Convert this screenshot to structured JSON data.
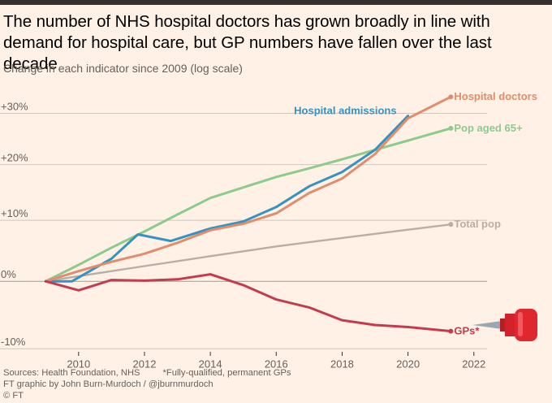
{
  "header": {
    "title": "The number of NHS hospital doctors has grown broadly in line with demand for hospital care, but GP numbers have fallen over the last decade",
    "subtitle": "Change in each indicator since 2009 (log scale)"
  },
  "footer": {
    "sources": "Sources: Health Foundation, NHS",
    "note": "*Fully-qualified, permanent GPs",
    "credit": "FT graphic by John Burn-Murdoch / @jburnmurdoch",
    "copyright": "© FT"
  },
  "colors": {
    "background": "#fff1e5",
    "grid": "#cec6bd",
    "text": "#33302e",
    "muted": "#66605c",
    "pin": "#d2232a"
  },
  "icon": "push-pin-icon",
  "chart_data": {
    "type": "line",
    "title": "The number of NHS hospital doctors has grown broadly in line with demand for hospital care, but GP numbers have fallen over the last decade",
    "xlabel": "",
    "ylabel": "Change in each indicator since 2009 (log scale)",
    "x_ticks": [
      2010,
      2012,
      2014,
      2016,
      2018,
      2020,
      2022
    ],
    "xlim": [
      2008.6,
      2022.4
    ],
    "y_ticks": [
      {
        "value": -10,
        "label": "-10%"
      },
      {
        "value": 0,
        "label": "0%"
      },
      {
        "value": 10,
        "label": "+10%"
      },
      {
        "value": 20,
        "label": "+20%"
      },
      {
        "value": 30,
        "label": "+30%"
      }
    ],
    "ylim": [
      -11,
      36
    ],
    "y_scale": "log",
    "grid": true,
    "series": [
      {
        "name": "Total pop",
        "label": "Total pop",
        "color": "#b9aea6",
        "x": [
          2009,
          2010,
          2011,
          2012,
          2013,
          2014,
          2015,
          2016,
          2017,
          2018,
          2019,
          2020,
          2021.3
        ],
        "values": [
          0,
          0.8,
          1.6,
          2.4,
          3.2,
          4.0,
          4.8,
          5.6,
          6.3,
          7.0,
          7.7,
          8.4,
          9.3
        ]
      },
      {
        "name": "Pop aged 65+",
        "label": "Pop aged 65+",
        "color": "#8ccb8b",
        "x": [
          2009,
          2010,
          2011,
          2012,
          2013,
          2014,
          2015,
          2016,
          2017,
          2018,
          2019,
          2020,
          2021.3
        ],
        "values": [
          0,
          2.6,
          5.4,
          8.1,
          11.0,
          13.9,
          15.8,
          17.7,
          19.3,
          21.0,
          22.8,
          24.6,
          27.0
        ]
      },
      {
        "name": "Hospital admissions",
        "label": "Hospital admissions",
        "color": "#3593c3",
        "x": [
          2009,
          2009.8,
          2011,
          2011.8,
          2012.8,
          2014,
          2015,
          2016,
          2017,
          2018,
          2019,
          2020
        ],
        "values": [
          0,
          0,
          3.6,
          7.6,
          6.5,
          8.6,
          9.8,
          12.3,
          16.0,
          18.6,
          22.8,
          29.5
        ]
      },
      {
        "name": "Hospital doctors",
        "label": "Hospital doctors",
        "color": "#e08d6c",
        "x": [
          2009,
          2010,
          2011,
          2012,
          2013,
          2014,
          2015,
          2016,
          2017,
          2018,
          2019,
          2020,
          2021.3
        ],
        "values": [
          0,
          1.6,
          3.1,
          4.4,
          6.2,
          8.3,
          9.4,
          11.2,
          14.8,
          17.4,
          22.0,
          29.0,
          33.4
        ]
      },
      {
        "name": "GPs*",
        "label": "GPs*",
        "color": "#c53a4d",
        "x": [
          2009,
          2010,
          2011,
          2012,
          2013,
          2014,
          2015,
          2016,
          2017,
          2018,
          2019,
          2020,
          2021.3
        ],
        "values": [
          0,
          -1.4,
          0.2,
          0.1,
          0.3,
          1.1,
          -0.6,
          -2.8,
          -4.0,
          -5.9,
          -6.6,
          -6.9,
          -7.5
        ]
      }
    ]
  }
}
